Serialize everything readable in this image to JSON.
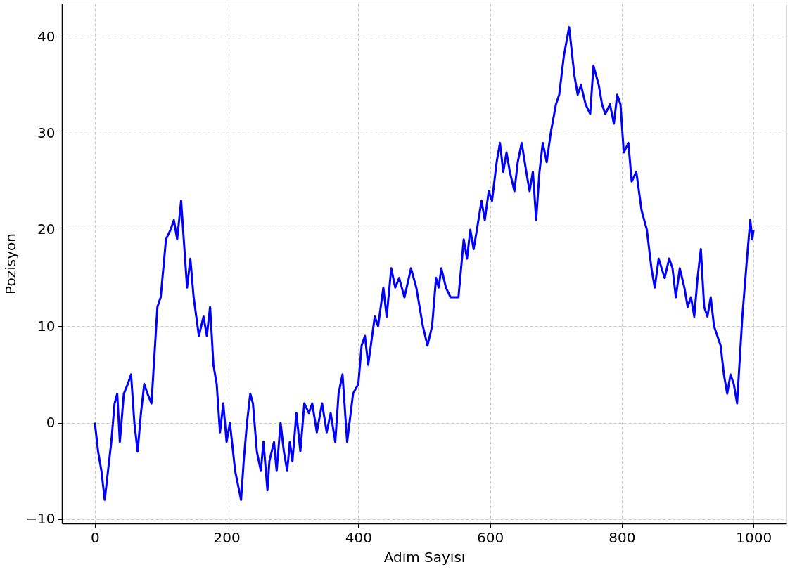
{
  "chart_data": {
    "type": "line",
    "xlabel": "Adım Sayısı",
    "ylabel": "Pozisyon",
    "xlim": [
      -50,
      1050
    ],
    "ylim": [
      -10.45,
      43.45
    ],
    "xticks": [
      0,
      200,
      400,
      600,
      800,
      1000
    ],
    "yticks": [
      {
        "value": -10,
        "label": "−10"
      },
      0,
      10,
      20,
      30,
      40
    ],
    "grid": true,
    "marker": "none",
    "line_style": "solid",
    "series": [
      {
        "color": "#0000ff",
        "x": [
          0,
          5,
          10,
          15,
          20,
          25,
          30,
          34,
          38,
          44,
          50,
          55,
          60,
          65,
          70,
          75,
          80,
          86,
          95,
          100,
          108,
          115,
          120,
          125,
          131,
          140,
          145,
          150,
          158,
          165,
          170,
          175,
          180,
          185,
          190,
          195,
          200,
          205,
          213,
          222,
          226,
          231,
          236,
          240,
          246,
          252,
          256,
          262,
          265,
          272,
          276,
          282,
          287,
          292,
          296,
          300,
          306,
          312,
          318,
          325,
          330,
          337,
          345,
          352,
          358,
          365,
          370,
          376,
          383,
          392,
          400,
          405,
          410,
          415,
          425,
          430,
          438,
          443,
          450,
          456,
          462,
          470,
          480,
          488,
          498,
          505,
          512,
          518,
          522,
          526,
          533,
          540,
          548,
          552,
          560,
          565,
          570,
          575,
          580,
          587,
          592,
          598,
          603,
          610,
          615,
          620,
          625,
          630,
          637,
          642,
          648,
          655,
          660,
          665,
          670,
          675,
          680,
          686,
          692,
          700,
          705,
          712,
          720,
          728,
          733,
          738,
          745,
          752,
          757,
          765,
          770,
          775,
          782,
          788,
          793,
          798,
          803,
          810,
          815,
          822,
          830,
          838,
          845,
          850,
          856,
          865,
          872,
          877,
          882,
          888,
          895,
          900,
          905,
          910,
          915,
          920,
          925,
          930,
          935,
          940,
          945,
          950,
          955,
          960,
          965,
          970,
          975,
          983,
          990,
          995,
          998,
          1000
        ],
        "values": [
          0,
          -3,
          -5,
          -8,
          -5,
          -2,
          2,
          3,
          -2,
          3,
          4,
          5,
          0,
          -3,
          1,
          4,
          3,
          2,
          12,
          13,
          19,
          20,
          21,
          19,
          23,
          14,
          17,
          13,
          9,
          11,
          9,
          12,
          6,
          4,
          -1,
          2,
          -2,
          0,
          -5,
          -8,
          -4,
          0,
          3,
          2,
          -3,
          -5,
          -2,
          -7,
          -4,
          -2,
          -5,
          0,
          -3,
          -5,
          -2,
          -4,
          1,
          -3,
          2,
          1,
          2,
          -1,
          2,
          -1,
          1,
          -2,
          3,
          5,
          -2,
          3,
          4,
          8,
          9,
          6,
          11,
          10,
          14,
          11,
          16,
          14,
          15,
          13,
          16,
          14,
          10,
          8,
          10,
          15,
          14,
          16,
          14,
          13,
          13,
          13,
          19,
          17,
          20,
          18,
          20,
          23,
          21,
          24,
          23,
          27,
          29,
          26,
          28,
          26,
          24,
          27,
          29,
          26,
          24,
          26,
          21,
          26,
          29,
          27,
          30,
          33,
          34,
          38,
          41,
          36,
          34,
          35,
          33,
          32,
          37,
          35,
          33,
          32,
          33,
          31,
          34,
          33,
          28,
          29,
          25,
          26,
          22,
          20,
          16,
          14,
          17,
          15,
          17,
          16,
          13,
          16,
          14,
          12,
          13,
          11,
          15,
          18,
          12,
          11,
          13,
          10,
          9,
          8,
          5,
          3,
          5,
          4,
          2,
          11,
          17,
          21,
          19,
          20
        ]
      }
    ]
  }
}
